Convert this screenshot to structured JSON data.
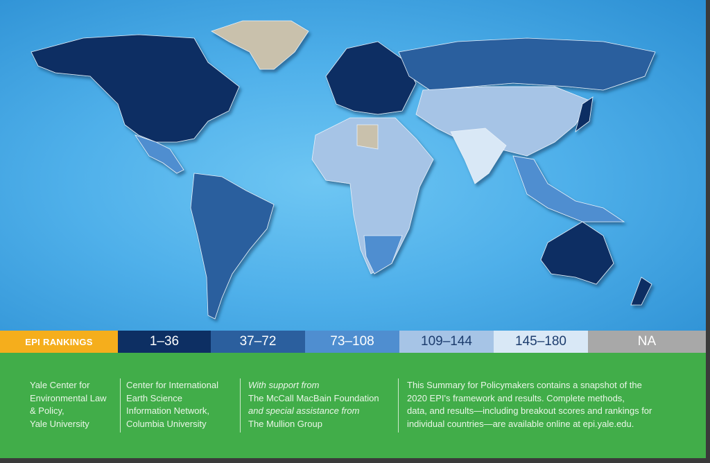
{
  "legend": {
    "title": "EPI RANKINGS",
    "title_color": "#f5ae1c",
    "ranges": [
      {
        "label": "1–36",
        "color": "#0d2f63",
        "text_color": "#ffffff"
      },
      {
        "label": "37–72",
        "color": "#2b5f9e",
        "text_color": "#ffffff"
      },
      {
        "label": "73–108",
        "color": "#4f8ed0",
        "text_color": "#ffffff"
      },
      {
        "label": "109–144",
        "color": "#a6c4e6",
        "text_color": "#1d3d6e"
      },
      {
        "label": "145–180",
        "color": "#d9e8f6",
        "text_color": "#1d3d6e"
      },
      {
        "label": "NA",
        "color": "#a8a8a8",
        "text_color": "#ffffff"
      }
    ]
  },
  "footer": {
    "yale": [
      "Yale Center for",
      "Environmental Law",
      "& Policy,",
      "Yale University"
    ],
    "ciesin": [
      "Center for International",
      "Earth Science",
      "Information Network,",
      "Columbia University"
    ],
    "support": {
      "intro": "With support from",
      "funder": "The McCall MacBain Foundation",
      "assist_intro": "and special assistance from",
      "assist": "The Mullion Group"
    },
    "summary": [
      "This Summary for Policymakers contains a snapshot of the",
      "2020 EPI's framework and results. Complete methods,",
      "data, and results—including breakout scores and rankings for",
      "individual countries—are available online at epi.yale.edu."
    ]
  },
  "colors": {
    "footer_bg": "#41ad49",
    "ocean": "#4fb0ea"
  }
}
